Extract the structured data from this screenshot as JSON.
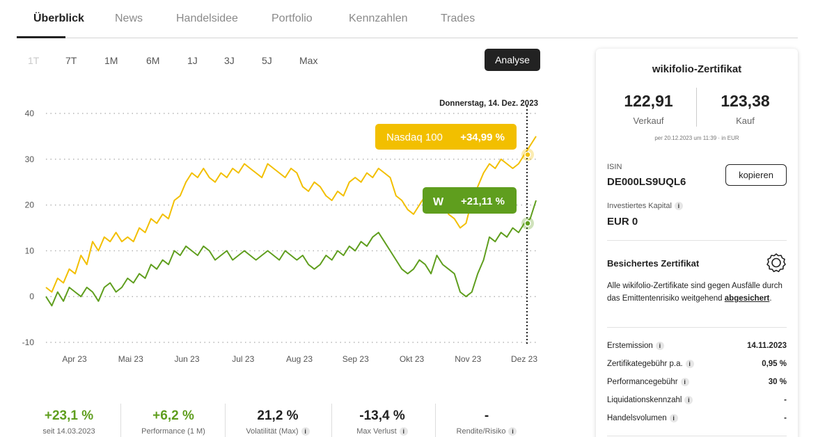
{
  "tabs": [
    "Überblick",
    "News",
    "Handelsidee",
    "Portfolio",
    "Kennzahlen",
    "Trades"
  ],
  "ranges": [
    "1T",
    "7T",
    "1M",
    "6M",
    "1J",
    "3J",
    "5J",
    "Max"
  ],
  "analyse_label": "Analyse",
  "chart_data": {
    "type": "line",
    "tooltip_date": "Donnerstag, 14. Dez. 2023",
    "xticks": [
      "Apr 23",
      "Mai 23",
      "Jun 23",
      "Jul 23",
      "Aug 23",
      "Sep 23",
      "Okt 23",
      "Nov 23",
      "Dez 23"
    ],
    "yticks": [
      40,
      30,
      20,
      10,
      0,
      -10
    ],
    "ylim": [
      -10,
      40
    ],
    "grid": true,
    "series": [
      {
        "name": "Nasdaq 100",
        "color": "#f2bf00",
        "label_value": "+34,99 %",
        "values": [
          2,
          1,
          4,
          3,
          6,
          5,
          9,
          7,
          12,
          10,
          13,
          12,
          14,
          12,
          13,
          12,
          15,
          14,
          17,
          16,
          18,
          17,
          21,
          22,
          25,
          27,
          26,
          28,
          26,
          25,
          27,
          26,
          28,
          27,
          29,
          28,
          27,
          26,
          29,
          28,
          27,
          26,
          28,
          27,
          24,
          23,
          25,
          24,
          22,
          21,
          23,
          22,
          25,
          26,
          25,
          27,
          26,
          28,
          27,
          26,
          22,
          21,
          19,
          18,
          20,
          22,
          20,
          19,
          21,
          18,
          17,
          15,
          16,
          21,
          24,
          27,
          29,
          28,
          30,
          29,
          28,
          29,
          31,
          33,
          35
        ]
      },
      {
        "name": "wikifolio",
        "color": "#5f9e1e",
        "label_value": "+21,11 %",
        "values": [
          0,
          -2,
          1,
          -1,
          2,
          1,
          0,
          2,
          1,
          -1,
          2,
          3,
          1,
          2,
          4,
          3,
          5,
          4,
          7,
          6,
          8,
          7,
          10,
          9,
          11,
          10,
          9,
          11,
          10,
          8,
          9,
          10,
          8,
          9,
          10,
          9,
          8,
          9,
          10,
          9,
          8,
          10,
          9,
          8,
          9,
          7,
          6,
          7,
          9,
          8,
          10,
          9,
          11,
          10,
          12,
          11,
          13,
          14,
          12,
          10,
          8,
          6,
          5,
          6,
          8,
          7,
          5,
          9,
          7,
          6,
          5,
          1,
          0,
          1,
          5,
          8,
          13,
          12,
          14,
          13,
          15,
          14,
          16,
          17,
          21
        ]
      }
    ]
  },
  "stats": [
    {
      "value": "+23,1 %",
      "label": "seit 14.03.2023",
      "positive": true,
      "info": false
    },
    {
      "value": "+6,2 %",
      "label": "Performance (1 M)",
      "positive": true,
      "info": false
    },
    {
      "value": "21,2 %",
      "label": "Volatilität (Max)",
      "positive": false,
      "info": true
    },
    {
      "value": "-13,4 %",
      "label": "Max Verlust",
      "positive": false,
      "info": true
    },
    {
      "value": "-",
      "label": "Rendite/Risiko",
      "positive": false,
      "info": true
    }
  ],
  "card": {
    "title": "wikifolio-Zertifikat",
    "sell_value": "122,91",
    "sell_label": "Verkauf",
    "buy_value": "123,38",
    "buy_label": "Kauf",
    "price_note": "per 20.12.2023 um 11:39 · in EUR",
    "isin_label": "ISIN",
    "isin_value": "DE000LS9UQL6",
    "copy_label": "kopieren",
    "capital_label": "Investiertes Kapital",
    "capital_value": "EUR 0",
    "secured_title": "Besichertes Zertifikat",
    "secured_text": "Alle wikifolio-Zertifikate sind gegen Ausfälle durch das Emittentenrisiko weitgehend",
    "secured_link": "abgesichert",
    "secured_end": ".",
    "rows": [
      {
        "label": "Erstemission",
        "value": "14.11.2023"
      },
      {
        "label": "Zertifikategebühr p.a.",
        "value": "0,95 %"
      },
      {
        "label": "Performancegebühr",
        "value": "30 %"
      },
      {
        "label": "Liquidationskennzahl",
        "value": "-"
      },
      {
        "label": "Handelsvolumen",
        "value": "-"
      }
    ]
  },
  "icons": {
    "info": "info-icon",
    "wikifolio": "wikifolio-logo-icon",
    "badge": "certificate-badge-icon"
  }
}
